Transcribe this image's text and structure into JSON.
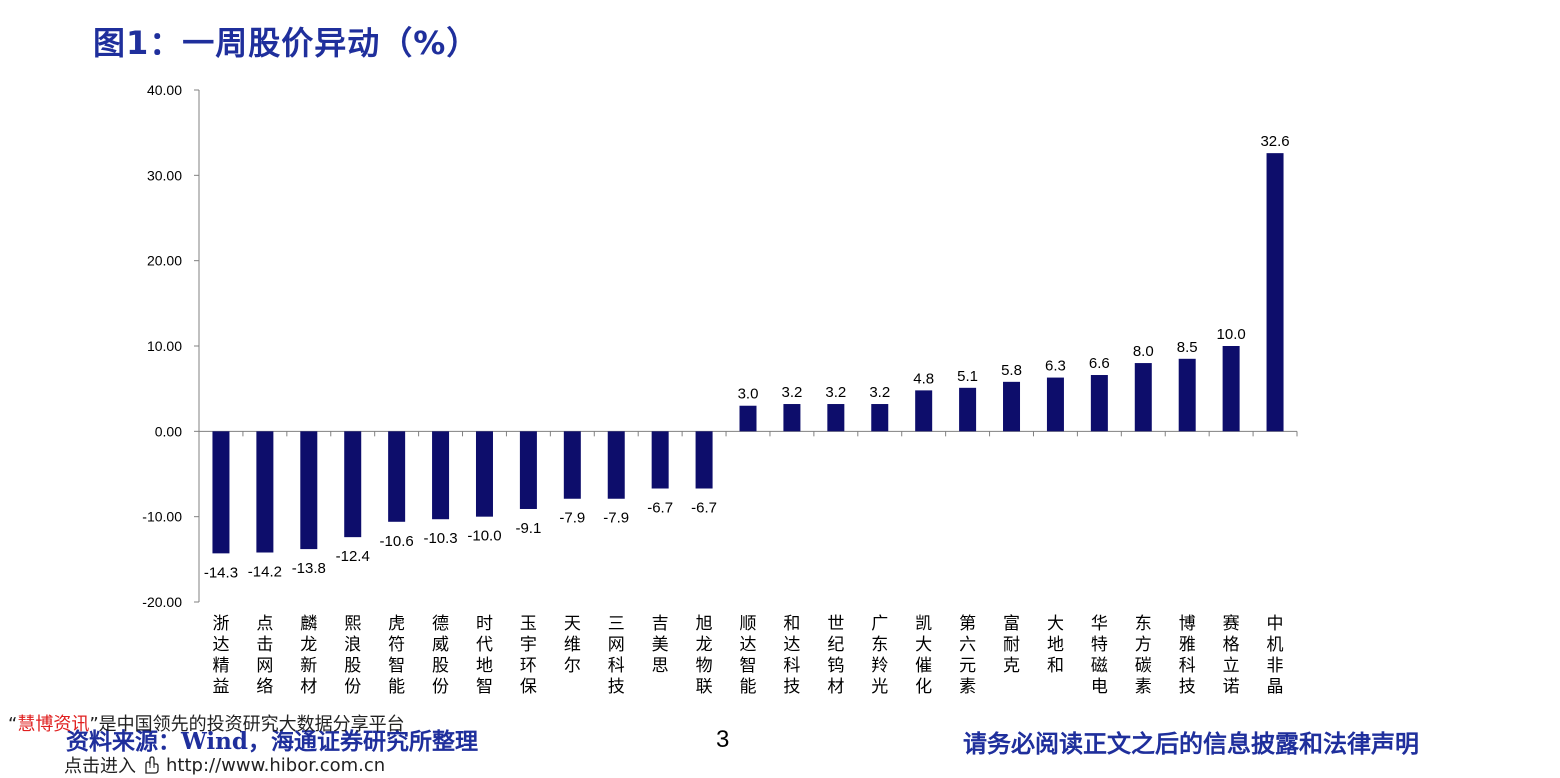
{
  "title": "图1：一周股价异动（%）",
  "chart_data": {
    "type": "bar",
    "categories": [
      "浙达精益",
      "点击网络",
      "麟龙新材",
      "熙浪股份",
      "虎符智能",
      "德威股份",
      "时代地智",
      "玉宇环保",
      "天维尔",
      "三网科技",
      "吉美思",
      "旭龙物联",
      "顺达智能",
      "和达科技",
      "世纪钨材",
      "广东羚光",
      "凯大催化",
      "第六元素",
      "富耐克",
      "大地和",
      "华特磁电",
      "东方碳素",
      "博雅科技",
      "赛格立诺",
      "中机非晶"
    ],
    "values": [
      -14.3,
      -14.2,
      -13.8,
      -12.4,
      -10.6,
      -10.3,
      -10.0,
      -9.1,
      -7.9,
      -7.9,
      -6.7,
      -6.7,
      3.0,
      3.2,
      3.2,
      3.2,
      4.8,
      5.1,
      5.8,
      6.3,
      6.6,
      8.0,
      8.5,
      10.0,
      32.6
    ],
    "value_labels": [
      "-14.3",
      "-14.2",
      "-13.8",
      "-12.4",
      "-10.6",
      "-10.3",
      "-10.0",
      "-9.1",
      "-7.9",
      "-7.9",
      "-6.7",
      "-6.7",
      "3.0",
      "3.2",
      "3.2",
      "3.2",
      "4.8",
      "5.1",
      "5.8",
      "6.3",
      "6.6",
      "8.0",
      "8.5",
      "10.0",
      "32.6"
    ],
    "yticks": [
      "40.00",
      "30.00",
      "20.00",
      "10.00",
      "0.00",
      "-10.00",
      "-20.00"
    ],
    "ytick_values": [
      40,
      30,
      20,
      10,
      0,
      -10,
      -20
    ],
    "ylim": [
      -20,
      40
    ],
    "bar_color": "#0d0d6b",
    "grid": false
  },
  "footer": {
    "source": "资料来源：Wind，海通证券研究所整理",
    "page": "3",
    "disclaimer": "请务必阅读正文之后的信息披露和法律声明"
  },
  "watermark": {
    "open_quote": "“",
    "brand": "慧博资讯",
    "rest": "”是中国领先的投资研究大数据分享平台",
    "click_text": "点击进入",
    "url": "http://www.hibor.com.cn",
    "brand_color": "#e02020"
  }
}
